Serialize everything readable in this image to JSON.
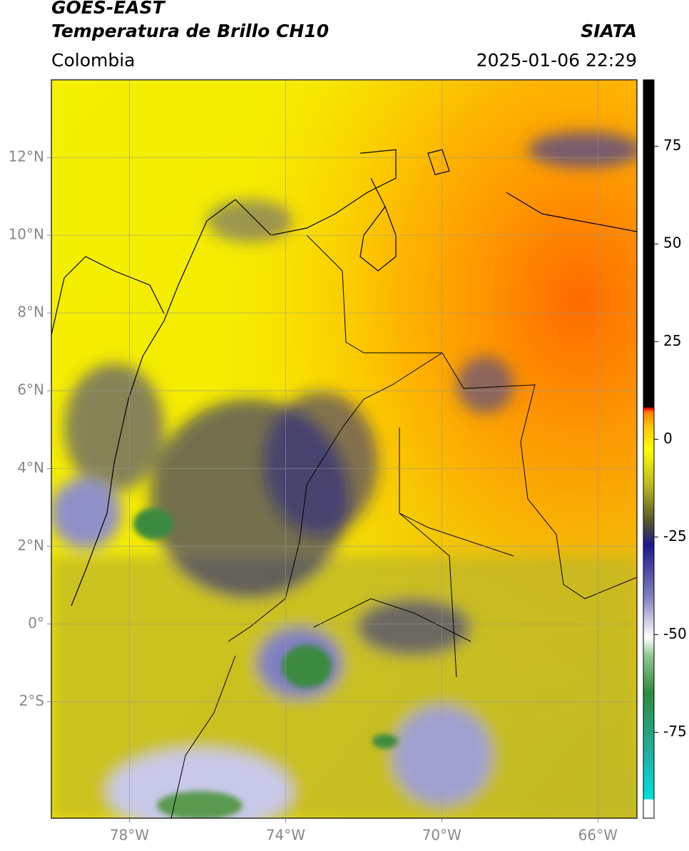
{
  "header": {
    "title": "GOES-EAST",
    "subtitle": "Temperatura de Brillo CH10",
    "source": "SIATA",
    "region": "Colombia",
    "datetime": "2025-01-06 22:29"
  },
  "map": {
    "xlim": [
      -80,
      -65
    ],
    "ylim": [
      -5,
      14
    ],
    "xticks": [
      {
        "value": -78,
        "label": "78°W"
      },
      {
        "value": -74,
        "label": "74°W"
      },
      {
        "value": -70,
        "label": "70°W"
      },
      {
        "value": -66,
        "label": "66°W"
      }
    ],
    "yticks": [
      {
        "value": 12,
        "label": "12°N"
      },
      {
        "value": 10,
        "label": "10°N"
      },
      {
        "value": 8,
        "label": "8°N"
      },
      {
        "value": 6,
        "label": "6°N"
      },
      {
        "value": 4,
        "label": "4°N"
      },
      {
        "value": 2,
        "label": "2°N"
      },
      {
        "value": 0,
        "label": "0°"
      },
      {
        "value": -2,
        "label": "2°S"
      }
    ],
    "grid": true
  },
  "colorbar": {
    "lim": [
      -97,
      92
    ],
    "ticks": [
      75,
      50,
      25,
      0,
      -25,
      -50,
      -75
    ]
  }
}
